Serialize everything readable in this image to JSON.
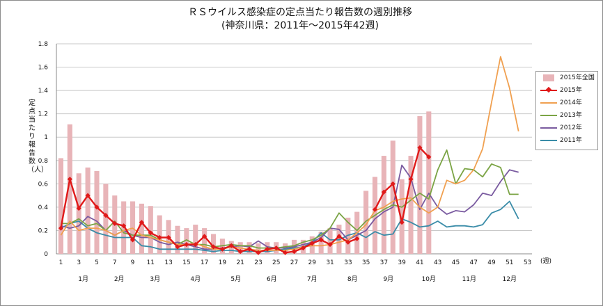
{
  "title": {
    "line1": "ＲＳウイルス感染症の定点当たり報告数の週別推移",
    "line2": "(神奈川県：2011年～2015年42週)"
  },
  "chart_data": {
    "type": "bar+line",
    "ylabel": "定点当たり報告数（人）",
    "xlabel": "(週)",
    "ylim": [
      0,
      1.8
    ],
    "y_ticks": [
      "0",
      "0.2",
      "0.4",
      "0.6",
      "0.8",
      "1",
      "1.2",
      "1.4",
      "1.6",
      "1.8"
    ],
    "x_ticks": [
      1,
      3,
      5,
      7,
      9,
      11,
      13,
      15,
      17,
      19,
      21,
      23,
      25,
      27,
      29,
      31,
      33,
      35,
      37,
      39,
      41,
      43,
      45,
      47,
      49,
      51,
      53
    ],
    "months": [
      {
        "label": "1月",
        "week": 3.5
      },
      {
        "label": "2月",
        "week": 7.5
      },
      {
        "label": "3月",
        "week": 11.5
      },
      {
        "label": "4月",
        "week": 16
      },
      {
        "label": "5月",
        "week": 20.5
      },
      {
        "label": "6月",
        "week": 24.5
      },
      {
        "label": "7月",
        "week": 29
      },
      {
        "label": "8月",
        "week": 33.5
      },
      {
        "label": "9月",
        "week": 37.5
      },
      {
        "label": "10月",
        "week": 42
      },
      {
        "label": "11月",
        "week": 46.5
      },
      {
        "label": "12月",
        "week": 51
      }
    ],
    "grid": "horizontal",
    "legend_position": "right",
    "bar": {
      "name": "2015年全国",
      "color": "#e8b4b8",
      "values": [
        0.82,
        1.11,
        0.69,
        0.74,
        0.71,
        0.6,
        0.5,
        0.45,
        0.45,
        0.43,
        0.41,
        0.33,
        0.29,
        0.24,
        0.22,
        0.25,
        0.22,
        0.17,
        0.13,
        0.11,
        0.1,
        0.1,
        0.09,
        0.1,
        0.1,
        0.09,
        0.12,
        0.12,
        0.15,
        0.19,
        0.22,
        0.25,
        0.31,
        0.36,
        0.54,
        0.66,
        0.84,
        0.97,
        0.64,
        0.84,
        1.18,
        1.22
      ]
    },
    "series": [
      {
        "name": "2015年",
        "color": "#e01a1a",
        "marker": "diamond",
        "values": [
          0.22,
          0.64,
          0.39,
          0.5,
          0.4,
          0.33,
          0.26,
          0.24,
          0.12,
          0.27,
          0.18,
          0.14,
          0.14,
          0.06,
          0.08,
          0.08,
          0.15,
          0.06,
          0.04,
          0.07,
          0.02,
          0.04,
          0.01,
          0.04,
          0.05,
          0.01,
          0.02,
          0.05,
          0.09,
          0.12,
          0.08,
          0.15,
          0.1,
          0.13,
          null,
          0.38,
          0.53,
          0.6,
          0.27,
          0.64,
          0.91,
          0.83
        ]
      },
      {
        "name": "2014年",
        "color": "#f0a050",
        "values": [
          0.16,
          0.28,
          0.2,
          0.22,
          0.22,
          0.2,
          0.16,
          0.2,
          0.22,
          0.16,
          0.14,
          0.12,
          0.1,
          0.08,
          0.08,
          0.09,
          0.06,
          0.04,
          0.04,
          0.06,
          0.05,
          0.04,
          0.03,
          0.03,
          0.03,
          0.03,
          0.04,
          0.06,
          0.07,
          0.07,
          0.08,
          0.1,
          0.12,
          0.18,
          0.25,
          0.37,
          0.4,
          0.45,
          0.47,
          0.48,
          0.4,
          0.35,
          0.4,
          0.63,
          0.6,
          0.63,
          0.72,
          0.9,
          1.3,
          1.69,
          1.42,
          1.05
        ]
      },
      {
        "name": "2013年",
        "color": "#7ba445",
        "values": [
          0.26,
          0.26,
          0.3,
          0.24,
          0.26,
          0.2,
          0.28,
          0.18,
          0.16,
          0.16,
          0.16,
          0.12,
          0.1,
          0.08,
          0.12,
          0.08,
          0.08,
          0.06,
          0.07,
          0.08,
          0.07,
          0.07,
          0.05,
          0.05,
          0.05,
          0.06,
          0.07,
          0.1,
          0.12,
          0.16,
          0.22,
          0.35,
          0.27,
          0.2,
          0.28,
          0.33,
          0.38,
          0.42,
          0.4,
          0.46,
          0.52,
          0.47,
          0.72,
          0.89,
          0.6,
          0.73,
          0.72,
          0.66,
          0.77,
          0.74,
          0.51,
          0.51
        ]
      },
      {
        "name": "2012年",
        "color": "#7a5ba0",
        "values": [
          0.24,
          0.22,
          0.24,
          0.32,
          0.28,
          0.2,
          0.16,
          0.2,
          0.16,
          0.14,
          0.14,
          0.1,
          0.08,
          0.1,
          0.08,
          0.06,
          0.04,
          0.04,
          0.05,
          0.06,
          0.07,
          0.06,
          0.11,
          0.06,
          0.05,
          0.05,
          0.06,
          0.08,
          0.1,
          0.14,
          0.22,
          0.21,
          0.12,
          0.16,
          0.2,
          0.3,
          0.36,
          0.4,
          0.76,
          0.65,
          0.38,
          0.52,
          0.4,
          0.34,
          0.37,
          0.36,
          0.42,
          0.52,
          0.5,
          0.62,
          0.72,
          0.7
        ]
      },
      {
        "name": "2011年",
        "color": "#3a8ca8",
        "values": [
          0.22,
          0.26,
          0.28,
          0.22,
          0.18,
          0.16,
          0.14,
          0.14,
          0.14,
          0.07,
          0.06,
          0.04,
          0.04,
          0.04,
          0.04,
          0.04,
          0.03,
          0.02,
          0.03,
          0.03,
          0.02,
          0.02,
          0.02,
          0.02,
          0.03,
          0.04,
          0.05,
          0.06,
          0.1,
          0.18,
          0.12,
          0.12,
          0.16,
          0.18,
          0.14,
          0.19,
          0.16,
          0.17,
          0.3,
          0.27,
          0.23,
          0.24,
          0.28,
          0.23,
          0.24,
          0.24,
          0.23,
          0.25,
          0.35,
          0.38,
          0.45,
          0.3
        ]
      }
    ]
  }
}
